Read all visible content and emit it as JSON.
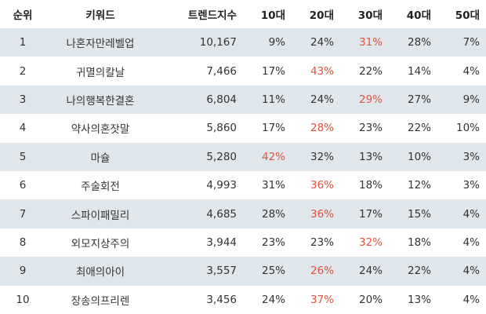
{
  "headers": [
    "순위",
    "키워드",
    "트렌드지수",
    "10대",
    "20대",
    "30대",
    "40대",
    "50대"
  ],
  "highlight_color": "#e0533d",
  "rows": [
    {
      "rank": "1",
      "keyword": "나혼자만레벨업",
      "trend": "10,167",
      "ages": [
        "9%",
        "24%",
        "31%",
        "28%",
        "7%"
      ],
      "hl": 2
    },
    {
      "rank": "2",
      "keyword": "귀멸의칼날",
      "trend": "7,466",
      "ages": [
        "17%",
        "43%",
        "22%",
        "14%",
        "4%"
      ],
      "hl": 1
    },
    {
      "rank": "3",
      "keyword": "나의행복한결혼",
      "trend": "6,804",
      "ages": [
        "11%",
        "24%",
        "29%",
        "27%",
        "9%"
      ],
      "hl": 2
    },
    {
      "rank": "4",
      "keyword": "약사의혼잣말",
      "trend": "5,860",
      "ages": [
        "17%",
        "28%",
        "23%",
        "22%",
        "10%"
      ],
      "hl": 1
    },
    {
      "rank": "5",
      "keyword": "마슐",
      "trend": "5,280",
      "ages": [
        "42%",
        "32%",
        "13%",
        "10%",
        "3%"
      ],
      "hl": 0
    },
    {
      "rank": "6",
      "keyword": "주술회전",
      "trend": "4,993",
      "ages": [
        "31%",
        "36%",
        "18%",
        "12%",
        "3%"
      ],
      "hl": 1
    },
    {
      "rank": "7",
      "keyword": "스파이패밀리",
      "trend": "4,685",
      "ages": [
        "28%",
        "36%",
        "17%",
        "15%",
        "4%"
      ],
      "hl": 1
    },
    {
      "rank": "8",
      "keyword": "외모지상주의",
      "trend": "3,944",
      "ages": [
        "23%",
        "23%",
        "32%",
        "18%",
        "4%"
      ],
      "hl": 2
    },
    {
      "rank": "9",
      "keyword": "최애의아이",
      "trend": "3,557",
      "ages": [
        "25%",
        "26%",
        "24%",
        "22%",
        "4%"
      ],
      "hl": 1
    },
    {
      "rank": "10",
      "keyword": "장송의프리렌",
      "trend": "3,456",
      "ages": [
        "24%",
        "37%",
        "20%",
        "13%",
        "4%"
      ],
      "hl": 1
    }
  ]
}
